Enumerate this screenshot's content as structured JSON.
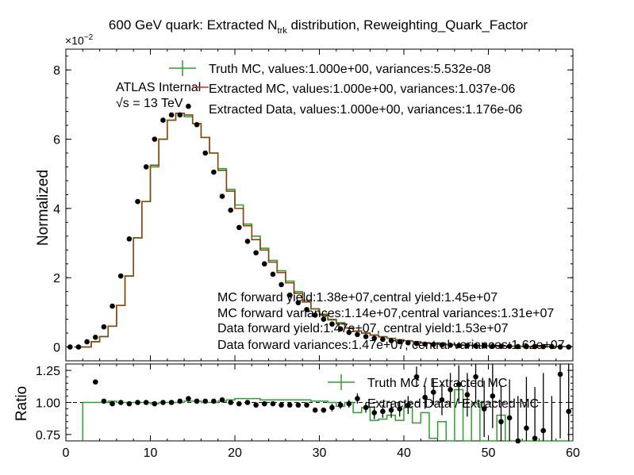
{
  "colors": {
    "truth": "#2ca02c",
    "extracted_mc": "#d62728",
    "data": "#000000",
    "mc_hist": "#8b4513"
  },
  "chart_data": [
    {
      "type": "line",
      "title_main": "600 GeV quark: Extracted N",
      "title_sub": "trk",
      "title_rest": " distribution, Reweighting_Quark_Factor",
      "ylabel": "Normalized",
      "exponent_label": "×10",
      "exponent_power": "−2",
      "ylim": [
        -0.4,
        8.6
      ],
      "xlim": [
        0,
        60
      ],
      "yticks": [
        0,
        2,
        4,
        6,
        8
      ],
      "ytick_labels": [
        "0",
        "2",
        "4",
        "6",
        "8"
      ],
      "atlas_label": "ATLAS Internal",
      "energy_label": "√s = 13 TeV",
      "legend": [
        "Truth MC, values:1.000e+00, variances:5.532e-08",
        "Extracted MC, values:1.000e+00, variances:1.037e-06",
        "Extracted Data, values:1.000e+00, variances:1.176e-06"
      ],
      "annotations": [
        "MC forward yield:1.38e+07,central yield:1.45e+07",
        "MC forward variances:1.14e+07,central variances:1.31e+07",
        "Data forward yield:1.47e+07, central yield:1.53e+07",
        "Data forward variances:1.47e+07, central variances:1.62e+07"
      ],
      "bin_edges": [
        1,
        2,
        3,
        4,
        5,
        6,
        7,
        8,
        9,
        10,
        11,
        12,
        13,
        14,
        15,
        16,
        17,
        18,
        19,
        20,
        21,
        22,
        23,
        24,
        25,
        26,
        27,
        28,
        29,
        30,
        31,
        32,
        33,
        34,
        35,
        36,
        37,
        38,
        39,
        40,
        41,
        42,
        43,
        44,
        45,
        46,
        47,
        48,
        49,
        50,
        51,
        52,
        53,
        54,
        55,
        56,
        57,
        58,
        59,
        60
      ],
      "series": [
        {
          "name": "Truth MC",
          "values": [
            0.0,
            0.0,
            0.15,
            0.3,
            0.6,
            1.2,
            2.05,
            3.15,
            4.2,
            5.2,
            6.0,
            6.55,
            6.75,
            6.65,
            6.45,
            6.05,
            5.6,
            5.15,
            4.55,
            4.1,
            3.55,
            3.2,
            2.85,
            2.5,
            2.2,
            1.9,
            1.6,
            1.35,
            1.1,
            0.95,
            0.8,
            0.7,
            0.55,
            0.45,
            0.4,
            0.35,
            0.3,
            0.25,
            0.2,
            0.18,
            0.15,
            0.12,
            0.1,
            0.08,
            0.07,
            0.06,
            0.05,
            0.04,
            0.03,
            0.03,
            0.02,
            0.02,
            0.02,
            0.01,
            0.01,
            0.01,
            0.01,
            0.01,
            0.01
          ]
        },
        {
          "name": "Extracted MC",
          "values": [
            0.0,
            0.0,
            0.15,
            0.3,
            0.6,
            1.2,
            2.05,
            3.15,
            4.2,
            5.25,
            6.0,
            6.55,
            6.75,
            6.7,
            6.45,
            6.05,
            5.6,
            5.1,
            4.5,
            4.0,
            3.5,
            3.1,
            2.8,
            2.45,
            2.15,
            1.85,
            1.55,
            1.3,
            1.1,
            0.92,
            0.78,
            0.67,
            0.55,
            0.46,
            0.4,
            0.34,
            0.29,
            0.25,
            0.21,
            0.18,
            0.15,
            0.12,
            0.1,
            0.08,
            0.07,
            0.06,
            0.05,
            0.04,
            0.03,
            0.03,
            0.02,
            0.02,
            0.02,
            0.01,
            0.01,
            0.01,
            0.01,
            0.01,
            0.01
          ]
        }
      ],
      "points": {
        "name": "Extracted Data",
        "x": [
          0.5,
          1.5,
          2.5,
          3.5,
          4.5,
          5.5,
          6.5,
          7.5,
          8.5,
          9.5,
          10.5,
          11.5,
          12.5,
          13.5,
          14.5,
          15.5,
          16.5,
          17.5,
          18.5,
          19.5,
          20.5,
          21.5,
          22.5,
          23.5,
          24.5,
          25.5,
          26.5,
          27.5,
          28.5,
          29.5,
          30.5,
          31.5,
          32.5,
          33.5,
          34.5,
          35.5,
          36.5,
          37.5,
          38.5,
          39.5,
          40.5,
          41.5,
          42.5,
          43.5,
          44.5,
          45.5,
          46.5,
          47.5,
          48.5,
          49.5,
          50.5,
          51.5,
          52.5,
          53.5,
          54.5,
          55.5,
          56.5,
          57.5,
          58.5,
          59.5
        ],
        "y": [
          0.0,
          0.0,
          0.15,
          0.28,
          0.58,
          1.18,
          2.05,
          3.12,
          4.2,
          5.2,
          6.0,
          6.55,
          6.7,
          6.7,
          6.95,
          6.42,
          5.6,
          5.05,
          4.35,
          3.95,
          3.45,
          3.05,
          2.72,
          2.4,
          2.1,
          1.8,
          1.5,
          1.28,
          1.08,
          0.92,
          0.8,
          0.66,
          0.52,
          0.42,
          0.36,
          0.3,
          0.25,
          0.22,
          0.18,
          0.15,
          0.12,
          0.1,
          0.08,
          0.07,
          0.06,
          0.05,
          0.04,
          0.04,
          0.03,
          0.03,
          0.02,
          0.02,
          0.02,
          0.01,
          0.01,
          0.01,
          0.01,
          0.01,
          0.0,
          0.0
        ]
      }
    },
    {
      "type": "line",
      "ylabel": "Ratio",
      "ylim": [
        0.7,
        1.3
      ],
      "xlim": [
        0,
        60
      ],
      "yticks": [
        0.75,
        1.0,
        1.25
      ],
      "ytick_labels": [
        "0.75",
        "1.00",
        "1.25"
      ],
      "xticks": [
        0,
        10,
        20,
        30,
        40,
        50,
        60
      ],
      "xtick_labels": [
        "0",
        "10",
        "20",
        "30",
        "40",
        "50",
        "60"
      ],
      "reference_line": 1.0,
      "legend": [
        "Truth MC / Extracted MC",
        "Extracted Data / Extracted MC"
      ],
      "bin_edges": [
        2,
        3,
        4,
        5,
        6,
        7,
        8,
        9,
        10,
        11,
        12,
        13,
        14,
        15,
        16,
        17,
        18,
        19,
        20,
        21,
        22,
        23,
        24,
        25,
        26,
        27,
        28,
        29,
        30,
        31,
        32,
        33,
        34,
        35,
        36,
        37,
        38,
        39,
        40,
        41,
        42,
        43,
        44,
        45,
        46,
        47,
        48,
        49,
        50,
        51,
        52,
        53,
        54,
        55,
        56,
        57,
        58,
        59,
        60
      ],
      "series": [
        {
          "name": "Truth MC / Extracted MC",
          "values": [
            1.0,
            1.0,
            1.0,
            1.01,
            1.0,
            1.0,
            1.0,
            1.0,
            0.99,
            1.0,
            1.0,
            1.0,
            1.01,
            1.01,
            1.0,
            1.0,
            1.01,
            1.02,
            1.03,
            1.03,
            1.03,
            1.02,
            1.02,
            1.02,
            1.02,
            1.02,
            1.02,
            1.01,
            1.01,
            1.0,
            0.97,
            1.0,
            0.92,
            0.96,
            0.86,
            0.87,
            0.9,
            0.86,
            0.96,
            0.84,
            0.92,
            0.72,
            0.85,
            0.7,
            1.1,
            0.62,
            0.99,
            0.7,
            0.55,
            0.9,
            0.6,
            0.5,
            0.65,
            0.55,
            0.4,
            0.7,
            0.6,
            0.5
          ]
        }
      ],
      "points": {
        "name": "Extracted Data / Extracted MC",
        "x": [
          3.5,
          4.5,
          5.5,
          6.5,
          7.5,
          8.5,
          9.5,
          10.5,
          11.5,
          12.5,
          13.5,
          14.5,
          15.5,
          16.5,
          17.5,
          18.5,
          19.5,
          20.5,
          21.5,
          22.5,
          23.5,
          24.5,
          25.5,
          26.5,
          27.5,
          28.5,
          29.5,
          30.5,
          31.5,
          32.5,
          33.5,
          34.5,
          35.5,
          36.5,
          37.5,
          38.5,
          39.5,
          40.5,
          41.5,
          42.5,
          43.5,
          44.5,
          45.5,
          46.5,
          47.5,
          48.5,
          49.5,
          50.5,
          51.5,
          52.5,
          53.5,
          54.5,
          55.5,
          56.5,
          57.5,
          58.5,
          59.5
        ],
        "y": [
          1.16,
          1.01,
          0.99,
          1.0,
          0.99,
          1.0,
          1.0,
          0.99,
          1.0,
          1.0,
          1.01,
          1.03,
          1.01,
          1.01,
          1.01,
          1.02,
          1.0,
          0.99,
          1.0,
          0.98,
          0.99,
          0.99,
          0.98,
          0.98,
          0.98,
          0.98,
          0.94,
          0.94,
          0.96,
          0.98,
          0.99,
          1.03,
          0.96,
          0.92,
          0.93,
          0.94,
          0.95,
          0.98,
          1.2,
          1.04,
          1.08,
          1.02,
          1.1,
          1.14,
          1.06,
          1.2,
          0.95,
          1.05,
          0.85,
          0.88,
          0.7,
          0.8,
          0.72,
          0.78,
          0.6,
          1.22,
          0.93
        ],
        "err": [
          0.01,
          0.01,
          0.01,
          0.01,
          0.01,
          0.01,
          0.01,
          0.01,
          0.01,
          0.01,
          0.01,
          0.01,
          0.01,
          0.01,
          0.01,
          0.01,
          0.01,
          0.01,
          0.01,
          0.01,
          0.01,
          0.01,
          0.01,
          0.01,
          0.02,
          0.02,
          0.02,
          0.02,
          0.03,
          0.03,
          0.03,
          0.04,
          0.04,
          0.05,
          0.05,
          0.06,
          0.06,
          0.07,
          0.08,
          0.09,
          0.1,
          0.12,
          0.13,
          0.15,
          0.17,
          0.2,
          0.22,
          0.25,
          0.28,
          0.3,
          0.35,
          0.4,
          0.4,
          0.45,
          0.45,
          0.5,
          0.5
        ]
      }
    }
  ]
}
